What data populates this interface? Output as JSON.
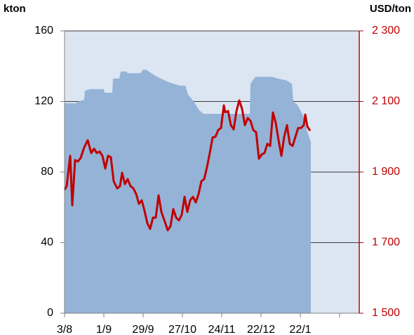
{
  "chart_data": {
    "type": "area-line",
    "y_label": "kton",
    "y2_label": "USD/ton",
    "xlim": [
      0,
      105
    ],
    "xticks": [
      {
        "value": 0,
        "label": "3/8"
      },
      {
        "value": 14,
        "label": "1/9"
      },
      {
        "value": 28,
        "label": "29/9"
      },
      {
        "value": 42,
        "label": "27/10"
      },
      {
        "value": 56,
        "label": "24/11"
      },
      {
        "value": 70,
        "label": "22/12"
      },
      {
        "value": 84,
        "label": "22/1"
      },
      {
        "value": 98,
        "label": null
      }
    ],
    "ylim": [
      0,
      160
    ],
    "yticks": [
      0,
      40,
      80,
      120,
      160
    ],
    "y2lim": [
      1500,
      2300
    ],
    "y2ticks": [
      {
        "value": 1500,
        "label": "1 500"
      },
      {
        "value": 1700,
        "label": "1 700"
      },
      {
        "value": 1900,
        "label": "1 900"
      },
      {
        "value": 2100,
        "label": "2 100"
      },
      {
        "value": 2300,
        "label": "2 300"
      }
    ],
    "background": "#dce6f2",
    "grid": true,
    "series": [
      {
        "type": "area",
        "color": "#95b3d7",
        "x": [
          0,
          4,
          5,
          7,
          7.25,
          9,
          14,
          14.25,
          17,
          17.25,
          19.5,
          20,
          22,
          22.5,
          27,
          28,
          29,
          33,
          37,
          41,
          43,
          44,
          46,
          48,
          49.5,
          66,
          66.25,
          67,
          68,
          74,
          76,
          79,
          81,
          81.5,
          83,
          85,
          86.5,
          87.75
        ],
        "values": [
          119,
          119,
          120,
          121,
          126,
          127,
          127,
          125,
          125,
          133,
          133,
          137,
          137,
          136,
          136,
          138,
          138,
          134,
          131,
          129,
          129,
          124,
          120,
          115,
          113,
          113,
          130,
          132,
          134,
          134,
          133,
          132,
          130,
          120,
          118,
          112,
          103,
          97
        ]
      },
      {
        "type": "line",
        "axis": "y2",
        "color": "#c00000",
        "x": [
          0,
          0.75,
          2,
          2.75,
          3.75,
          4.75,
          5.75,
          7,
          8.25,
          9.5,
          10.5,
          11.5,
          12.5,
          13.5,
          14.5,
          15.5,
          16.5,
          17.5,
          18.75,
          19.75,
          20.5,
          21.5,
          22.5,
          23.5,
          24.5,
          25.5,
          26.5,
          27.5,
          28.5,
          29.5,
          30.5,
          31.5,
          32.5,
          33.5,
          34.5,
          35.75,
          36.75,
          37.75,
          38.75,
          39.75,
          40.75,
          41.75,
          42.75,
          43.75,
          44.75,
          45.75,
          46.75,
          47.75,
          48.75,
          49.75,
          50.75,
          51.75,
          52.75,
          53.75,
          54.75,
          55.75,
          56.75,
          57.25,
          58.25,
          59.25,
          60.25,
          61.25,
          62.25,
          63.25,
          64.25,
          65.25,
          66.25,
          67.25,
          68.25,
          69.25,
          70.25,
          71.25,
          72.25,
          73.25,
          74.25,
          75.25,
          76.25,
          77.25,
          78.25,
          79.25,
          80.25,
          81.25,
          82.25,
          83.25,
          84.25,
          85.25,
          85.75,
          86.5,
          87.5
        ],
        "values": [
          1850,
          1860,
          1946,
          1806,
          1934,
          1930,
          1940,
          1970,
          1990,
          1954,
          1966,
          1954,
          1958,
          1946,
          1910,
          1946,
          1942,
          1874,
          1854,
          1860,
          1898,
          1866,
          1880,
          1860,
          1854,
          1838,
          1810,
          1820,
          1790,
          1755,
          1739,
          1771,
          1771,
          1834,
          1787,
          1759,
          1735,
          1747,
          1795,
          1771,
          1763,
          1779,
          1830,
          1787,
          1820,
          1830,
          1814,
          1838,
          1874,
          1880,
          1914,
          1954,
          1998,
          2000,
          2019,
          2025,
          2089,
          2069,
          2073,
          2033,
          2021,
          2073,
          2103,
          2079,
          2033,
          2053,
          2045,
          2019,
          2013,
          1938,
          1950,
          1954,
          1980,
          1974,
          2069,
          2039,
          1990,
          1946,
          2000,
          2033,
          1980,
          1974,
          2000,
          2025,
          2025,
          2033,
          2063,
          2029,
          2017
        ]
      }
    ]
  }
}
